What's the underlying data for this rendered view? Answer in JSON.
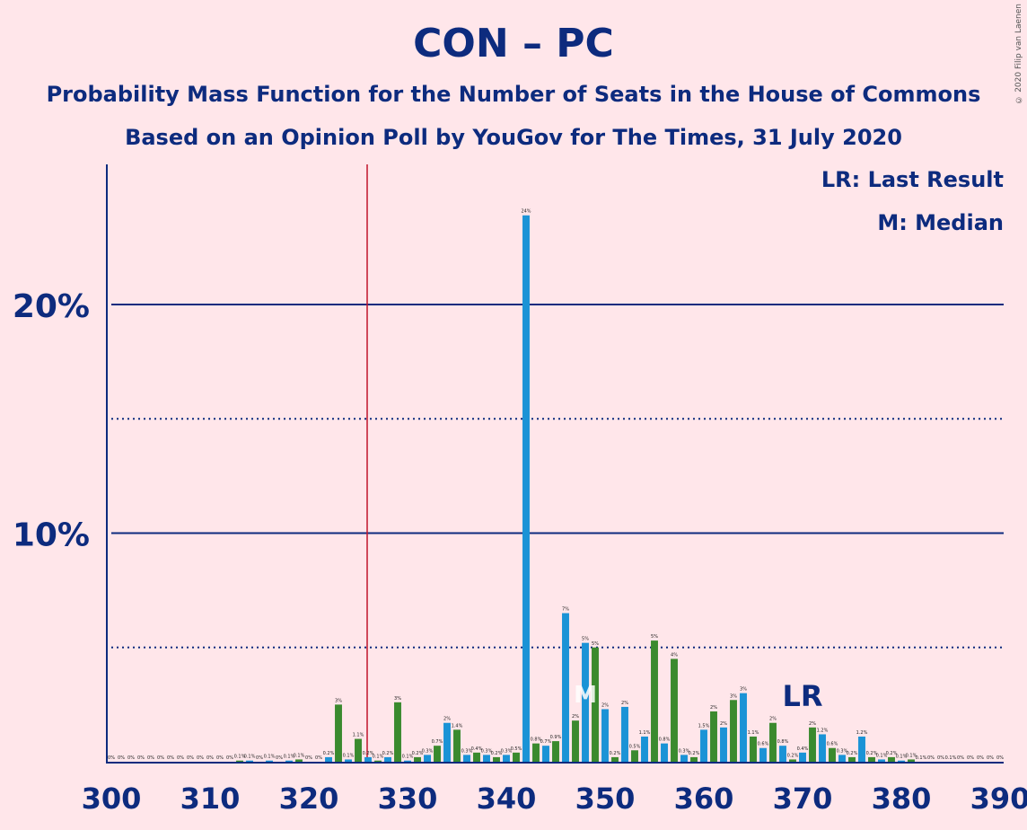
{
  "title": "CON – PC",
  "subtitle1": "Probability Mass Function for the Number of Seats in the House of Commons",
  "subtitle2": "Based on an Opinion Poll by YouGov for The Times, 31 July 2020",
  "copyright": "© 2020 Filip van Laenen",
  "legend": {
    "lr": "LR: Last Result",
    "m": "M: Median"
  },
  "colors": {
    "background": "#ffe6ea",
    "navy": "#0d2b7e",
    "green": "#3a8a2e",
    "blue": "#1a93d6",
    "lastResultLine": "#c0142a"
  },
  "chart_data": {
    "type": "bar",
    "xlabel": "",
    "ylabel": "",
    "xlim": [
      300,
      390
    ],
    "ylim": [
      0,
      26
    ],
    "x_ticks": [
      "300",
      "310",
      "320",
      "330",
      "340",
      "350",
      "360",
      "370",
      "380",
      "390"
    ],
    "y_ticks": [
      {
        "value": 10,
        "label": "10%"
      },
      {
        "value": 20,
        "label": "20%"
      }
    ],
    "last_result": {
      "seats": 326,
      "label": "LR",
      "label_seats": 370
    },
    "median": {
      "seats": 348,
      "label": "M"
    },
    "bars": [
      {
        "x": 300,
        "v": 0,
        "label": "0%"
      },
      {
        "x": 301,
        "v": 0,
        "label": "0%"
      },
      {
        "x": 302,
        "v": 0,
        "label": "0%"
      },
      {
        "x": 303,
        "v": 0,
        "label": "0%"
      },
      {
        "x": 304,
        "v": 0,
        "label": "0%"
      },
      {
        "x": 305,
        "v": 0,
        "label": "0%"
      },
      {
        "x": 306,
        "v": 0,
        "label": "0%"
      },
      {
        "x": 307,
        "v": 0,
        "label": "0%"
      },
      {
        "x": 308,
        "v": 0,
        "label": "0%"
      },
      {
        "x": 309,
        "v": 0,
        "label": "0%"
      },
      {
        "x": 310,
        "v": 0,
        "label": "0%"
      },
      {
        "x": 311,
        "v": 0,
        "label": "0%"
      },
      {
        "x": 312,
        "v": 0,
        "label": "0%"
      },
      {
        "x": 313,
        "v": 0.05,
        "label": "0.1%"
      },
      {
        "x": 314,
        "v": 0.05,
        "label": "0.1%"
      },
      {
        "x": 315,
        "v": 0,
        "label": "0%"
      },
      {
        "x": 316,
        "v": 0.05,
        "label": "0.1%"
      },
      {
        "x": 317,
        "v": 0,
        "label": "0%"
      },
      {
        "x": 318,
        "v": 0.05,
        "label": "0.1%"
      },
      {
        "x": 319,
        "v": 0.1,
        "label": "0.1%"
      },
      {
        "x": 320,
        "v": 0,
        "label": "0%"
      },
      {
        "x": 321,
        "v": 0,
        "label": "0%"
      },
      {
        "x": 322,
        "v": 0.2,
        "label": "0.2%"
      },
      {
        "x": 323,
        "v": 2.5,
        "label": "3%"
      },
      {
        "x": 324,
        "v": 0.1,
        "label": "0.1%"
      },
      {
        "x": 325,
        "v": 1.0,
        "label": "1.1%"
      },
      {
        "x": 326,
        "v": 0.2,
        "label": "0.2%"
      },
      {
        "x": 327,
        "v": 0.05,
        "label": "0.1%"
      },
      {
        "x": 328,
        "v": 0.2,
        "label": "0.2%"
      },
      {
        "x": 329,
        "v": 2.6,
        "label": "3%"
      },
      {
        "x": 330,
        "v": 0.05,
        "label": "0.1%"
      },
      {
        "x": 331,
        "v": 0.2,
        "label": "0.2%"
      },
      {
        "x": 332,
        "v": 0.3,
        "label": "0.3%"
      },
      {
        "x": 333,
        "v": 0.7,
        "label": "0.7%"
      },
      {
        "x": 334,
        "v": 1.7,
        "label": "2%"
      },
      {
        "x": 335,
        "v": 1.4,
        "label": "1.4%"
      },
      {
        "x": 336,
        "v": 0.3,
        "label": "0.3%"
      },
      {
        "x": 337,
        "v": 0.4,
        "label": "0.4%"
      },
      {
        "x": 338,
        "v": 0.3,
        "label": "0.3%"
      },
      {
        "x": 339,
        "v": 0.2,
        "label": "0.2%"
      },
      {
        "x": 340,
        "v": 0.3,
        "label": "0.3%"
      },
      {
        "x": 341,
        "v": 0.4,
        "label": "0.5%"
      },
      {
        "x": 342,
        "v": 23.9,
        "label": "24%"
      },
      {
        "x": 343,
        "v": 0.8,
        "label": "0.8%"
      },
      {
        "x": 344,
        "v": 0.7,
        "label": "0.7%"
      },
      {
        "x": 345,
        "v": 0.9,
        "label": "0.9%"
      },
      {
        "x": 346,
        "v": 6.5,
        "label": "7%"
      },
      {
        "x": 347,
        "v": 1.8,
        "label": "2%"
      },
      {
        "x": 348,
        "v": 5.2,
        "label": "5%"
      },
      {
        "x": 349,
        "v": 5.0,
        "label": "5%"
      },
      {
        "x": 350,
        "v": 2.3,
        "label": "2%"
      },
      {
        "x": 351,
        "v": 0.2,
        "label": "0.2%"
      },
      {
        "x": 352,
        "v": 2.4,
        "label": "2%"
      },
      {
        "x": 353,
        "v": 0.5,
        "label": "0.5%"
      },
      {
        "x": 354,
        "v": 1.1,
        "label": "1.1%"
      },
      {
        "x": 355,
        "v": 5.3,
        "label": "5%"
      },
      {
        "x": 356,
        "v": 0.8,
        "label": "0.8%"
      },
      {
        "x": 357,
        "v": 4.5,
        "label": "4%"
      },
      {
        "x": 358,
        "v": 0.3,
        "label": "0.3%"
      },
      {
        "x": 359,
        "v": 0.2,
        "label": "0.2%"
      },
      {
        "x": 360,
        "v": 1.4,
        "label": "1.5%"
      },
      {
        "x": 361,
        "v": 2.2,
        "label": "2%"
      },
      {
        "x": 362,
        "v": 1.5,
        "label": "2%"
      },
      {
        "x": 363,
        "v": 2.7,
        "label": "3%"
      },
      {
        "x": 364,
        "v": 3.0,
        "label": "3%"
      },
      {
        "x": 365,
        "v": 1.1,
        "label": "1.1%"
      },
      {
        "x": 366,
        "v": 0.6,
        "label": "0.6%"
      },
      {
        "x": 367,
        "v": 1.7,
        "label": "2%"
      },
      {
        "x": 368,
        "v": 0.7,
        "label": "0.8%"
      },
      {
        "x": 369,
        "v": 0.1,
        "label": "0.2%"
      },
      {
        "x": 370,
        "v": 0.4,
        "label": "0.4%"
      },
      {
        "x": 371,
        "v": 1.5,
        "label": "2%"
      },
      {
        "x": 372,
        "v": 1.2,
        "label": "1.2%"
      },
      {
        "x": 373,
        "v": 0.6,
        "label": "0.6%"
      },
      {
        "x": 374,
        "v": 0.3,
        "label": "0.3%"
      },
      {
        "x": 375,
        "v": 0.2,
        "label": "0.2%"
      },
      {
        "x": 376,
        "v": 1.1,
        "label": "1.2%"
      },
      {
        "x": 377,
        "v": 0.2,
        "label": "0.2%"
      },
      {
        "x": 378,
        "v": 0.1,
        "label": "0.1%"
      },
      {
        "x": 379,
        "v": 0.2,
        "label": "0.2%"
      },
      {
        "x": 380,
        "v": 0.05,
        "label": "0.1%"
      },
      {
        "x": 381,
        "v": 0.1,
        "label": "0.1%"
      },
      {
        "x": 382,
        "v": 0,
        "label": "0.1%"
      },
      {
        "x": 383,
        "v": 0,
        "label": "0%"
      },
      {
        "x": 384,
        "v": 0,
        "label": "0%"
      },
      {
        "x": 385,
        "v": 0,
        "label": "0.1%"
      },
      {
        "x": 386,
        "v": 0,
        "label": "0%"
      },
      {
        "x": 387,
        "v": 0,
        "label": "0%"
      },
      {
        "x": 388,
        "v": 0,
        "label": "0%"
      },
      {
        "x": 389,
        "v": 0,
        "label": "0%"
      },
      {
        "x": 390,
        "v": 0,
        "label": "0%"
      }
    ]
  }
}
